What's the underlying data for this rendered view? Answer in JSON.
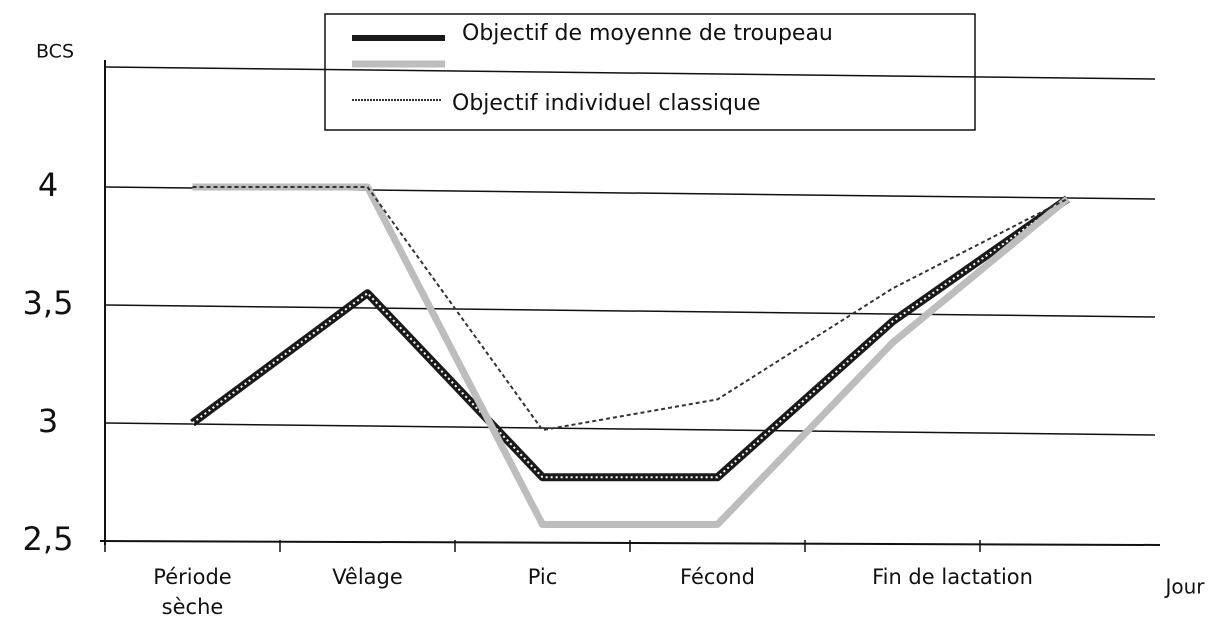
{
  "chart_data": {
    "type": "line",
    "ylabel": "BCS",
    "xlabel": "Jour",
    "categories": [
      "Période sèche",
      "Vêlage",
      "Pic",
      "Fécond",
      "Fin de lactation",
      null
    ],
    "series": [
      {
        "name": "Objectif de moyenne de troupeau",
        "color": "#1a1a1a",
        "values": [
          3.0,
          3.55,
          2.77,
          2.77,
          3.43,
          3.95
        ]
      },
      {
        "color": "#bdbdbd",
        "values": [
          4.0,
          4.0,
          2.57,
          2.57,
          3.34,
          3.95
        ]
      },
      {
        "name": "Objectif individuel classique",
        "color": "#333333",
        "values": [
          4.0,
          4.0,
          2.97,
          3.1,
          3.57,
          3.95
        ]
      }
    ],
    "ylim": [
      2.5,
      4.5
    ],
    "yticks": [
      {
        "value": 2.5,
        "label": "2,5"
      },
      3,
      {
        "value": 3.5,
        "label": "3,5"
      },
      4
    ],
    "grid": true
  }
}
